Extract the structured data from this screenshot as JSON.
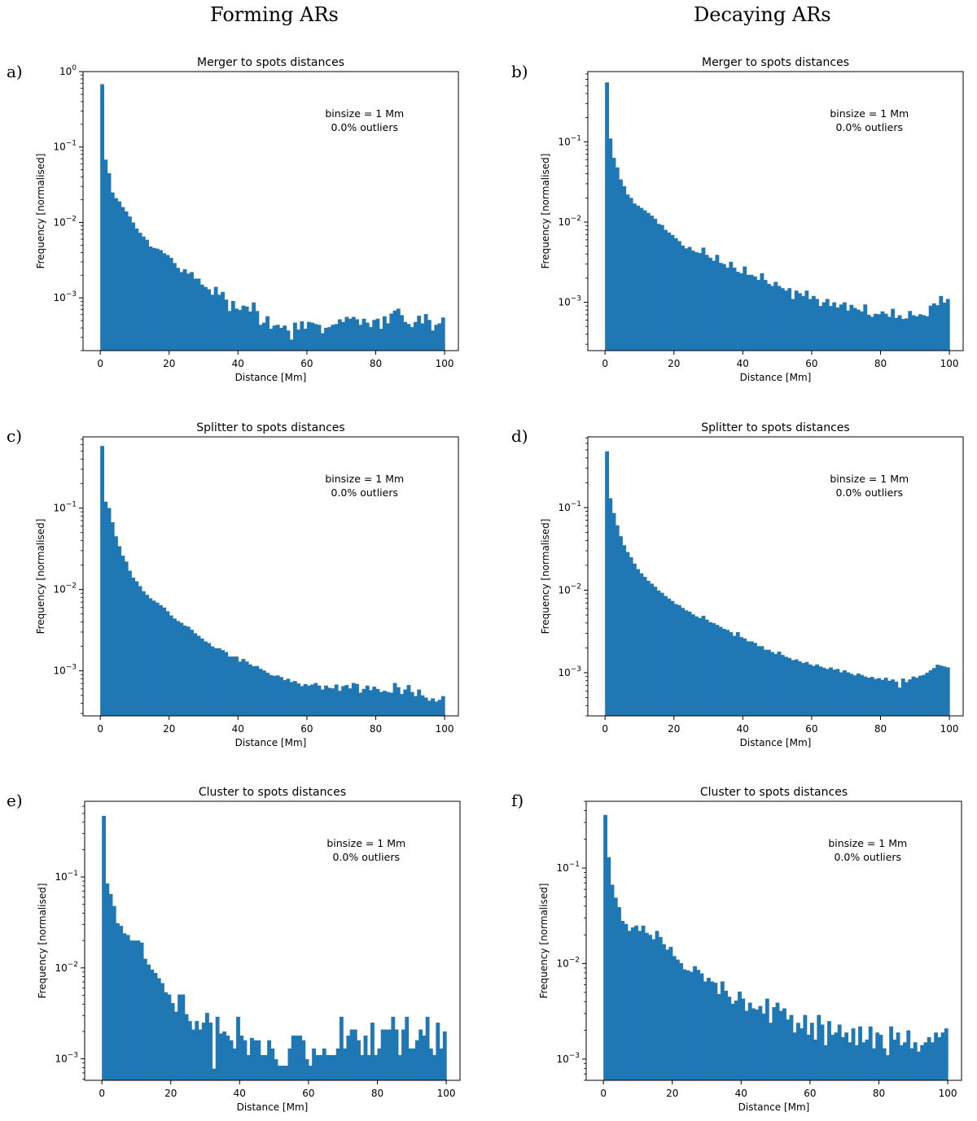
{
  "figure": {
    "column_headings": [
      "Forming ARs",
      "Decaying ARs"
    ]
  },
  "chart_data": [
    {
      "panel_label": "a)",
      "type": "bar",
      "title": "Merger to spots distances",
      "xlabel": "Distance [Mm]",
      "ylabel": "Frequency [normalised]",
      "xlim": [
        -5,
        104
      ],
      "ylim": [
        0.0002,
        1.0
      ],
      "yscale": "log",
      "xticks": [
        0,
        20,
        40,
        60,
        80,
        100
      ],
      "yticks": [
        0.001,
        0.01,
        0.1,
        1
      ],
      "ytick_labels": [
        {
          "base": "10",
          "exp": "−3"
        },
        {
          "base": "10",
          "exp": "−2"
        },
        {
          "base": "10",
          "exp": "−1"
        },
        {
          "base": "10",
          "exp": "0"
        }
      ],
      "annotation": [
        "binsize = 1 Mm",
        "0.0% outliers"
      ],
      "bin_width": 1,
      "bar_color": "#1f77b4",
      "values": [
        0.68,
        0.068,
        0.045,
        0.025,
        0.021,
        0.019,
        0.016,
        0.014,
        0.012,
        0.01,
        0.0083,
        0.0073,
        0.0065,
        0.0059,
        0.0048,
        0.0046,
        0.0045,
        0.0043,
        0.0039,
        0.0037,
        0.0034,
        0.0029,
        0.0025,
        0.0022,
        0.0024,
        0.0021,
        0.0022,
        0.0018,
        0.0018,
        0.0015,
        0.0014,
        0.0013,
        0.0011,
        0.0014,
        0.0011,
        0.0012,
        0.00095,
        0.00067,
        0.00091,
        0.00072,
        0.00069,
        0.00079,
        0.00077,
        0.00066,
        0.00087,
        0.00067,
        0.00044,
        0.00047,
        0.00057,
        0.00039,
        0.00043,
        0.00044,
        0.0004,
        0.00043,
        0.00037,
        0.00028,
        0.00047,
        0.00038,
        0.00049,
        0.00039,
        0.00048,
        0.00047,
        0.00045,
        0.00044,
        0.00034,
        0.0004,
        0.00041,
        0.00044,
        0.00045,
        0.00052,
        0.00048,
        0.00056,
        0.00053,
        0.00056,
        0.00052,
        0.00044,
        0.00053,
        0.00047,
        0.00041,
        0.00051,
        0.00053,
        0.00039,
        0.00057,
        0.00046,
        0.00062,
        0.00068,
        0.00072,
        0.00059,
        0.00048,
        0.00045,
        0.00041,
        0.00048,
        0.00058,
        0.00046,
        0.00061,
        0.00051,
        0.00037,
        0.00044,
        0.00046,
        0.00055
      ]
    },
    {
      "panel_label": "b)",
      "type": "bar",
      "title": "Merger to spots distances",
      "xlabel": "Distance [Mm]",
      "ylabel": "Frequency [normalised]",
      "xlim": [
        -5,
        104
      ],
      "ylim": [
        0.00025,
        0.75
      ],
      "yscale": "log",
      "xticks": [
        0,
        20,
        40,
        60,
        80,
        100
      ],
      "yticks": [
        0.001,
        0.01,
        0.1
      ],
      "ytick_labels": [
        {
          "base": "10",
          "exp": "−3"
        },
        {
          "base": "10",
          "exp": "−2"
        },
        {
          "base": "10",
          "exp": "−1"
        }
      ],
      "annotation": [
        "binsize = 1 Mm",
        "0.0% outliers"
      ],
      "bin_width": 1,
      "bar_color": "#1f77b4",
      "values": [
        0.55,
        0.11,
        0.063,
        0.048,
        0.034,
        0.028,
        0.022,
        0.02,
        0.017,
        0.016,
        0.015,
        0.014,
        0.013,
        0.012,
        0.011,
        0.0095,
        0.0092,
        0.008,
        0.0074,
        0.0069,
        0.0063,
        0.0058,
        0.0051,
        0.0047,
        0.0049,
        0.0044,
        0.0042,
        0.0041,
        0.0048,
        0.0039,
        0.0036,
        0.0033,
        0.0039,
        0.0031,
        0.003,
        0.0027,
        0.0032,
        0.0027,
        0.0024,
        0.0023,
        0.0028,
        0.0022,
        0.0022,
        0.0021,
        0.0019,
        0.0023,
        0.0019,
        0.0017,
        0.0016,
        0.0018,
        0.0016,
        0.0015,
        0.0014,
        0.0015,
        0.0011,
        0.0014,
        0.0013,
        0.0012,
        0.0014,
        0.0011,
        0.0012,
        0.0011,
        0.0009,
        0.001,
        0.0011,
        0.0009,
        0.001,
        0.00086,
        0.00094,
        0.001,
        0.00079,
        0.00093,
        0.00085,
        0.00081,
        0.00077,
        0.00094,
        0.0007,
        0.00066,
        0.00072,
        0.00071,
        0.00077,
        0.00072,
        0.00066,
        0.00083,
        0.00064,
        0.00069,
        0.00062,
        0.00063,
        0.00078,
        0.00069,
        0.00067,
        0.00071,
        0.00069,
        0.00067,
        0.00091,
        0.00097,
        0.00092,
        0.0012,
        0.00099,
        0.0011
      ]
    },
    {
      "panel_label": "c)",
      "type": "bar",
      "title": "Splitter to spots distances",
      "xlabel": "Distance [Mm]",
      "ylabel": "Frequency [normalised]",
      "xlim": [
        -5,
        104
      ],
      "ylim": [
        0.00028,
        0.75
      ],
      "yscale": "log",
      "xticks": [
        0,
        20,
        40,
        60,
        80,
        100
      ],
      "yticks": [
        0.001,
        0.01,
        0.1
      ],
      "ytick_labels": [
        {
          "base": "10",
          "exp": "−3"
        },
        {
          "base": "10",
          "exp": "−2"
        },
        {
          "base": "10",
          "exp": "−1"
        }
      ],
      "annotation": [
        "binsize = 1 Mm",
        "0.0% outliers"
      ],
      "bin_width": 1,
      "bar_color": "#1f77b4",
      "values": [
        0.58,
        0.12,
        0.1,
        0.067,
        0.045,
        0.034,
        0.026,
        0.022,
        0.017,
        0.014,
        0.0126,
        0.011,
        0.0095,
        0.0086,
        0.0078,
        0.0073,
        0.0069,
        0.0064,
        0.006,
        0.0054,
        0.0048,
        0.0044,
        0.0041,
        0.0039,
        0.0036,
        0.0035,
        0.0032,
        0.0029,
        0.0027,
        0.0025,
        0.0023,
        0.0022,
        0.002,
        0.0019,
        0.0019,
        0.0018,
        0.0017,
        0.0015,
        0.0015,
        0.0015,
        0.0013,
        0.0014,
        0.0013,
        0.0012,
        0.00114,
        0.00115,
        0.00106,
        0.00101,
        0.00095,
        0.00089,
        0.00087,
        0.00088,
        0.00084,
        0.00077,
        0.0008,
        0.00073,
        0.00075,
        0.0007,
        0.00065,
        0.00069,
        0.00066,
        0.00068,
        0.00071,
        0.00066,
        0.00059,
        0.00066,
        0.00062,
        0.00061,
        0.00068,
        0.00057,
        0.00065,
        0.00067,
        0.00061,
        0.00071,
        0.00069,
        0.00054,
        0.0006,
        0.00066,
        0.00058,
        0.00064,
        0.0006,
        0.00055,
        0.00057,
        0.00055,
        0.00054,
        0.00071,
        0.00063,
        0.00052,
        0.00059,
        0.00067,
        0.00055,
        0.00049,
        0.00059,
        0.0005,
        0.00047,
        0.00043,
        0.00046,
        0.00042,
        0.00044,
        0.00049
      ]
    },
    {
      "panel_label": "d)",
      "type": "bar",
      "title": "Splitter to spots distances",
      "xlabel": "Distance [Mm]",
      "ylabel": "Frequency [normalised]",
      "xlim": [
        -5,
        104
      ],
      "ylim": [
        0.0003,
        0.72
      ],
      "yscale": "log",
      "xticks": [
        0,
        20,
        40,
        60,
        80,
        100
      ],
      "yticks": [
        0.001,
        0.01,
        0.1
      ],
      "ytick_labels": [
        {
          "base": "10",
          "exp": "−3"
        },
        {
          "base": "10",
          "exp": "−2"
        },
        {
          "base": "10",
          "exp": "−1"
        }
      ],
      "annotation": [
        "binsize = 1 Mm",
        "0.0% outliers"
      ],
      "bin_width": 1,
      "bar_color": "#1f77b4",
      "values": [
        0.48,
        0.13,
        0.086,
        0.061,
        0.045,
        0.035,
        0.029,
        0.025,
        0.021,
        0.018,
        0.016,
        0.0145,
        0.013,
        0.012,
        0.011,
        0.0099,
        0.0093,
        0.0085,
        0.0079,
        0.0074,
        0.0068,
        0.0066,
        0.0061,
        0.0057,
        0.0055,
        0.0051,
        0.0048,
        0.0046,
        0.0049,
        0.0044,
        0.0041,
        0.004,
        0.0038,
        0.0036,
        0.0034,
        0.0033,
        0.0031,
        0.0028,
        0.0031,
        0.0027,
        0.0026,
        0.0024,
        0.0024,
        0.0023,
        0.0021,
        0.0021,
        0.0019,
        0.0019,
        0.00178,
        0.00169,
        0.0018,
        0.00164,
        0.00156,
        0.00151,
        0.00142,
        0.00145,
        0.00137,
        0.00131,
        0.00135,
        0.00126,
        0.00121,
        0.00126,
        0.00119,
        0.00115,
        0.00111,
        0.00116,
        0.00109,
        0.00111,
        0.00101,
        0.00107,
        0.00101,
        0.00097,
        0.00093,
        0.00098,
        0.00094,
        0.0009,
        0.00087,
        0.00089,
        0.00084,
        0.00086,
        0.00082,
        0.00087,
        0.0008,
        0.00083,
        0.00078,
        0.00066,
        0.00085,
        0.00077,
        0.00083,
        0.0009,
        0.00087,
        0.00092,
        0.00094,
        0.001,
        0.00107,
        0.00114,
        0.00125,
        0.00122,
        0.00119,
        0.00116
      ]
    },
    {
      "panel_label": "e)",
      "type": "bar",
      "title": "Cluster to spots distances",
      "xlabel": "Distance [Mm]",
      "ylabel": "Frequency [normalised]",
      "xlim": [
        -5,
        104
      ],
      "ylim": [
        0.00058,
        0.68
      ],
      "yscale": "log",
      "xticks": [
        0,
        20,
        40,
        60,
        80,
        100
      ],
      "yticks": [
        0.001,
        0.01,
        0.1
      ],
      "ytick_labels": [
        {
          "base": "10",
          "exp": "−3"
        },
        {
          "base": "10",
          "exp": "−2"
        },
        {
          "base": "10",
          "exp": "−1"
        }
      ],
      "annotation": [
        "binsize = 1 Mm",
        "0.0% outliers"
      ],
      "bin_width": 1,
      "bar_color": "#1f77b4",
      "values": [
        0.47,
        0.085,
        0.065,
        0.048,
        0.031,
        0.029,
        0.024,
        0.023,
        0.02,
        0.02,
        0.02,
        0.019,
        0.0126,
        0.0109,
        0.0096,
        0.0088,
        0.0077,
        0.0068,
        0.0054,
        0.0051,
        0.0041,
        0.0033,
        0.0051,
        0.0051,
        0.0031,
        0.0026,
        0.0021,
        0.0026,
        0.0021,
        0.0025,
        0.0032,
        0.0025,
        0.00078,
        0.0029,
        0.0019,
        0.002,
        0.0018,
        0.0016,
        0.0013,
        0.0029,
        0.0018,
        0.0016,
        0.0011,
        0.0017,
        0.0016,
        0.0016,
        0.0011,
        0.0011,
        0.0016,
        0.0013,
        0.00099,
        0.00084,
        0.00084,
        0.00084,
        0.0013,
        0.0018,
        0.0018,
        0.0018,
        0.0016,
        0.00099,
        0.00084,
        0.0013,
        0.0011,
        0.0011,
        0.0013,
        0.0011,
        0.0011,
        0.0011,
        0.0013,
        0.0029,
        0.0013,
        0.0018,
        0.0021,
        0.0021,
        0.0016,
        0.0011,
        0.0018,
        0.0011,
        0.0025,
        0.0011,
        0.0013,
        0.0021,
        0.0021,
        0.0021,
        0.0029,
        0.0021,
        0.0011,
        0.0021,
        0.0029,
        0.0013,
        0.0013,
        0.0016,
        0.0021,
        0.0018,
        0.0029,
        0.0013,
        0.0011,
        0.0025,
        0.0013,
        0.002
      ]
    },
    {
      "panel_label": "f)",
      "type": "bar",
      "title": "Cluster to spots distances",
      "xlabel": "Distance [Mm]",
      "ylabel": "Frequency [normalised]",
      "xlim": [
        -5,
        104
      ],
      "ylim": [
        0.0006,
        0.5
      ],
      "yscale": "log",
      "xticks": [
        0,
        20,
        40,
        60,
        80,
        100
      ],
      "yticks": [
        0.001,
        0.01,
        0.1
      ],
      "ytick_labels": [
        {
          "base": "10",
          "exp": "−3"
        },
        {
          "base": "10",
          "exp": "−2"
        },
        {
          "base": "10",
          "exp": "−1"
        }
      ],
      "annotation": [
        "binsize = 1 Mm",
        "0.0% outliers"
      ],
      "bin_width": 1,
      "bar_color": "#1f77b4",
      "values": [
        0.36,
        0.13,
        0.067,
        0.049,
        0.039,
        0.028,
        0.026,
        0.022,
        0.024,
        0.025,
        0.022,
        0.025,
        0.021,
        0.02,
        0.018,
        0.022,
        0.019,
        0.016,
        0.014,
        0.015,
        0.012,
        0.011,
        0.0101,
        0.0087,
        0.0085,
        0.0082,
        0.0094,
        0.0086,
        0.0079,
        0.0065,
        0.0071,
        0.0065,
        0.0063,
        0.0048,
        0.0065,
        0.0052,
        0.0045,
        0.0038,
        0.0041,
        0.0051,
        0.0043,
        0.0032,
        0.0039,
        0.0034,
        0.0033,
        0.0036,
        0.003,
        0.0043,
        0.0024,
        0.0035,
        0.0039,
        0.0032,
        0.0034,
        0.0026,
        0.0029,
        0.0019,
        0.0024,
        0.0021,
        0.0029,
        0.0018,
        0.0024,
        0.0016,
        0.0029,
        0.0023,
        0.0014,
        0.0025,
        0.0018,
        0.0019,
        0.0023,
        0.0017,
        0.0019,
        0.0015,
        0.0021,
        0.0014,
        0.0022,
        0.0015,
        0.0016,
        0.0022,
        0.0013,
        0.0019,
        0.0018,
        0.0013,
        0.0011,
        0.0022,
        0.0016,
        0.0019,
        0.0014,
        0.0015,
        0.002,
        0.0013,
        0.0015,
        0.0012,
        0.0014,
        0.0015,
        0.0017,
        0.0015,
        0.0019,
        0.0017,
        0.0019,
        0.0021
      ]
    }
  ]
}
